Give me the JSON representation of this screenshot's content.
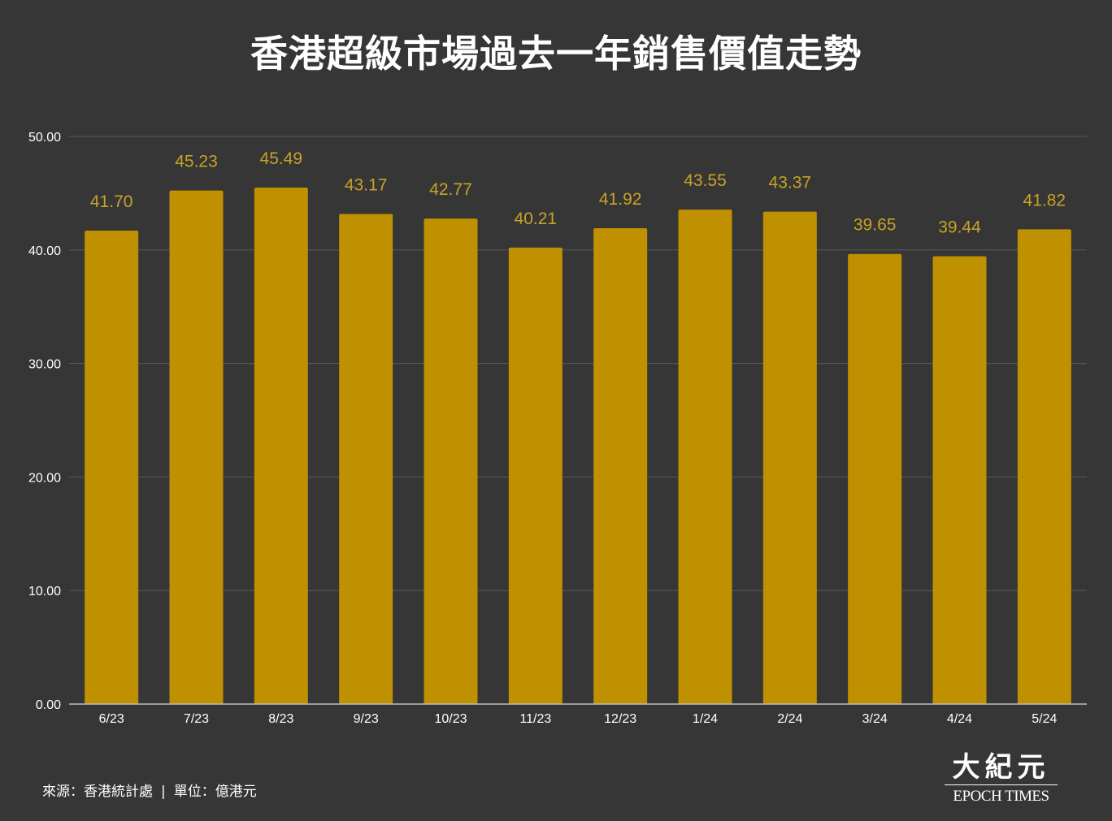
{
  "chart_data": {
    "type": "bar",
    "title": "香港超級市場過去一年銷售價值走勢",
    "categories": [
      "6/23",
      "7/23",
      "8/23",
      "9/23",
      "10/23",
      "11/23",
      "12/23",
      "1/24",
      "2/24",
      "3/24",
      "4/24",
      "5/24"
    ],
    "values": [
      41.7,
      45.23,
      45.49,
      43.17,
      42.77,
      40.21,
      41.92,
      43.55,
      43.37,
      39.65,
      39.44,
      41.82
    ],
    "value_labels": [
      "41.70",
      "45.23",
      "45.49",
      "43.17",
      "42.77",
      "40.21",
      "41.92",
      "43.55",
      "43.37",
      "39.65",
      "39.44",
      "41.82"
    ],
    "ylim": [
      0,
      50
    ],
    "yticks": [
      "0.00",
      "10.00",
      "20.00",
      "30.00",
      "40.00",
      "50.00"
    ],
    "grid": true,
    "legend": "none",
    "colors": {
      "bar": "#BF9000",
      "value_label": "#C9A227",
      "background": "#363636",
      "grid": "#5A5A5A",
      "axis": "#BDBDBD",
      "tick_label": "#FFFFFF"
    }
  },
  "footer": {
    "source": "來源：香港統計處",
    "separator": "|",
    "unit": "單位：億港元"
  },
  "logo": {
    "chinese": "大紀元",
    "english": "EPOCH TIMES"
  }
}
